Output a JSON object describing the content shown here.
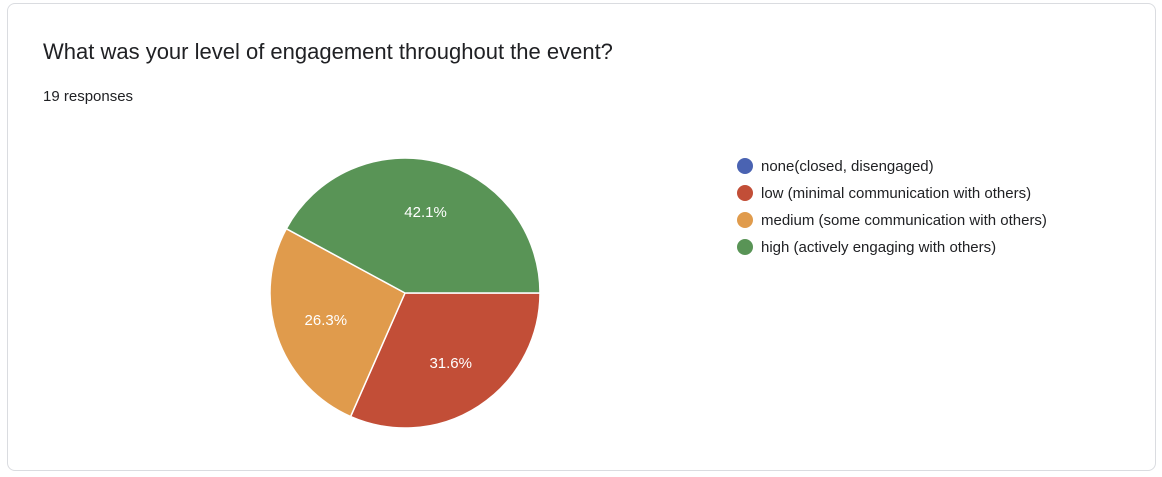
{
  "question": "What was your level of engagement throughout the event?",
  "responses": "19 responses",
  "chart_data": {
    "type": "pie",
    "categories": [
      "none(closed, disengaged)",
      "low (minimal communication with others)",
      "medium (some communication with others)",
      "high (actively engaging with others)"
    ],
    "values": [
      0,
      31.6,
      26.3,
      42.1
    ],
    "labels": [
      "",
      "31.6%",
      "26.3%",
      "42.1%"
    ],
    "colors": [
      "#4a63b2",
      "#c24e37",
      "#e09b4c",
      "#599456"
    ],
    "legend_position": "right"
  }
}
